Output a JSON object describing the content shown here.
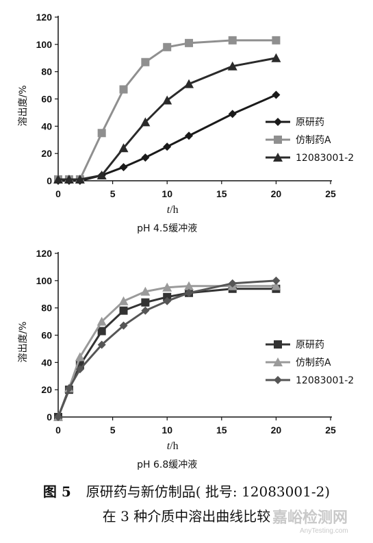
{
  "chart_data": [
    {
      "type": "line",
      "subtitle": "pH 4.5缓冲液",
      "xlabel_italic": "t",
      "xlabel_unit": "/h",
      "ylabel": "溶出度/%",
      "xlim": [
        0,
        25
      ],
      "ylim": [
        0,
        120
      ],
      "xticks": [
        "0",
        "5",
        "10",
        "15",
        "20",
        "25"
      ],
      "yticks": [
        "0",
        "20",
        "40",
        "60",
        "80",
        "100",
        "120"
      ],
      "grid": false,
      "legend_position": "right",
      "series": [
        {
          "name": "原研药",
          "marker": "diamond",
          "color": "#1a1a1a",
          "points": [
            [
              0,
              0
            ],
            [
              1,
              0
            ],
            [
              2,
              0
            ],
            [
              4,
              4
            ],
            [
              6,
              10
            ],
            [
              8,
              17
            ],
            [
              10,
              25
            ],
            [
              12,
              33
            ],
            [
              16,
              49
            ],
            [
              20,
              63
            ]
          ]
        },
        {
          "name": "仿制药A",
          "marker": "square",
          "color": "#8f8f8f",
          "points": [
            [
              0,
              1
            ],
            [
              1,
              1
            ],
            [
              2,
              1
            ],
            [
              4,
              35
            ],
            [
              6,
              67
            ],
            [
              8,
              87
            ],
            [
              10,
              98
            ],
            [
              12,
              101
            ],
            [
              16,
              103
            ],
            [
              20,
              103
            ]
          ]
        },
        {
          "name": "12083001-2",
          "marker": "triangle",
          "color": "#2a2a2a",
          "points": [
            [
              0,
              1
            ],
            [
              1,
              1
            ],
            [
              2,
              1
            ],
            [
              4,
              4
            ],
            [
              6,
              24
            ],
            [
              8,
              43
            ],
            [
              10,
              59
            ],
            [
              12,
              71
            ],
            [
              16,
              84
            ],
            [
              20,
              90
            ]
          ]
        }
      ]
    },
    {
      "type": "line",
      "subtitle": "pH 6.8缓冲液",
      "xlabel_italic": "t",
      "xlabel_unit": "/h",
      "ylabel": "溶出度/%",
      "xlim": [
        0,
        25
      ],
      "ylim": [
        0,
        120
      ],
      "xticks": [
        "0",
        "5",
        "10",
        "15",
        "20",
        "25"
      ],
      "yticks": [
        "0",
        "20",
        "40",
        "60",
        "80",
        "100",
        "120"
      ],
      "grid": false,
      "legend_position": "right",
      "series": [
        {
          "name": "原研药",
          "marker": "square",
          "color": "#333333",
          "points": [
            [
              0,
              0
            ],
            [
              1,
              20
            ],
            [
              2,
              38
            ],
            [
              4,
              63
            ],
            [
              6,
              78
            ],
            [
              8,
              84
            ],
            [
              10,
              88
            ],
            [
              12,
              91
            ],
            [
              16,
              94
            ],
            [
              20,
              94
            ]
          ]
        },
        {
          "name": "仿制药A",
          "marker": "triangle",
          "color": "#9a9a9a",
          "points": [
            [
              0,
              0
            ],
            [
              1,
              21
            ],
            [
              2,
              44
            ],
            [
              4,
              70
            ],
            [
              6,
              85
            ],
            [
              8,
              92
            ],
            [
              10,
              95
            ],
            [
              12,
              96
            ],
            [
              16,
              96
            ],
            [
              20,
              96
            ]
          ]
        },
        {
          "name": "12083001-2",
          "marker": "diamond",
          "color": "#555555",
          "points": [
            [
              0,
              0
            ],
            [
              1,
              21
            ],
            [
              2,
              35
            ],
            [
              4,
              53
            ],
            [
              6,
              67
            ],
            [
              8,
              78
            ],
            [
              10,
              85
            ],
            [
              12,
              91
            ],
            [
              16,
              98
            ],
            [
              20,
              100
            ]
          ]
        }
      ]
    }
  ],
  "caption": {
    "fig_no": "图 5",
    "line1": "原研药与新仿制品( 批号: 12083001-2)",
    "line2": "在 3 种介质中溶出曲线比较"
  },
  "watermark": {
    "text": "嘉峪检测网",
    "url": "AnyTesting.com"
  }
}
